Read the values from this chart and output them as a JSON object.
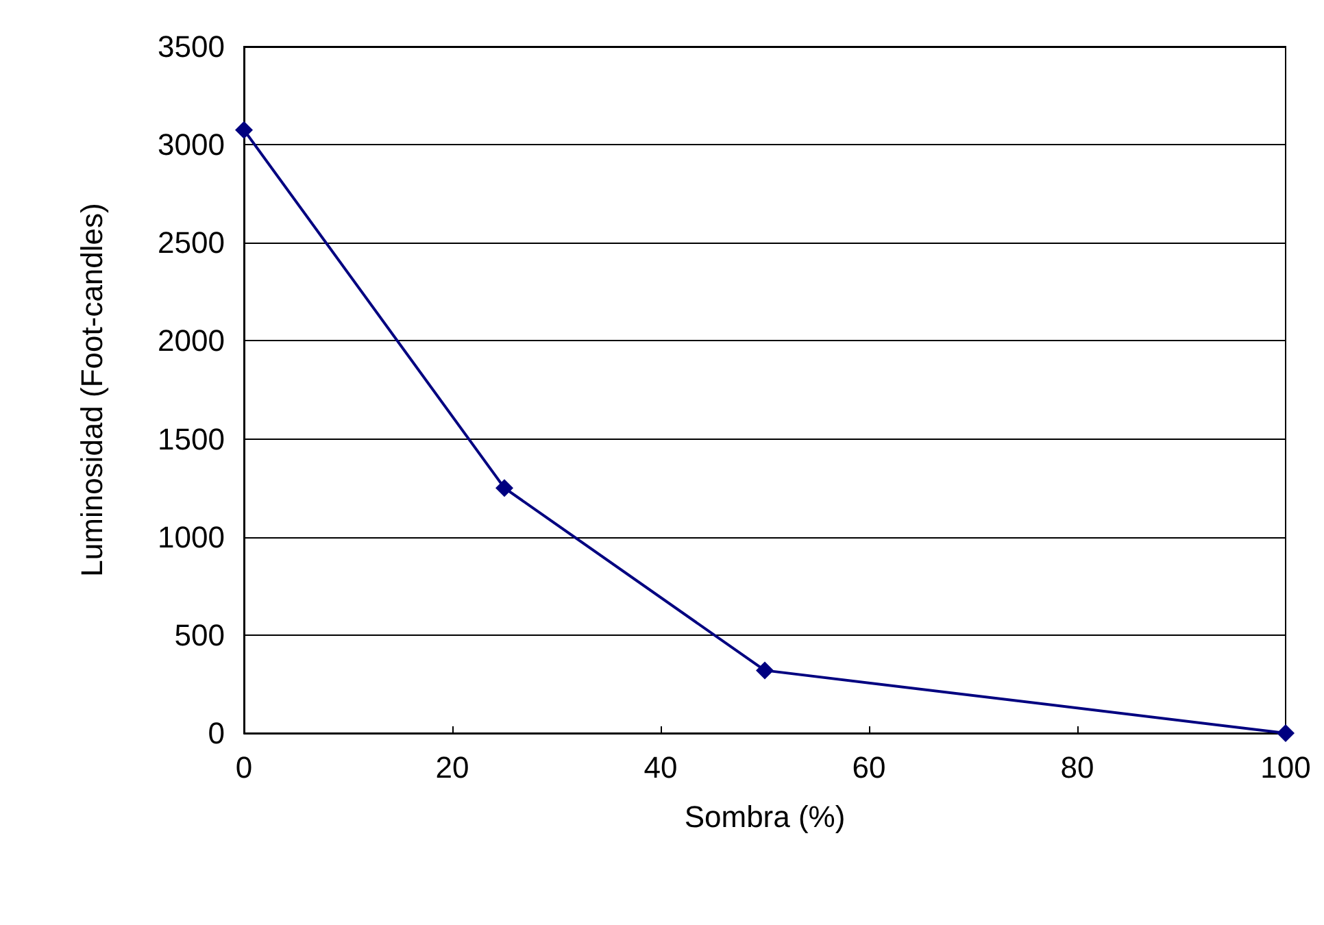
{
  "chart_data": {
    "type": "line",
    "xlabel": "Sombra (%)",
    "ylabel": "Luminosidad (Foot-candles)",
    "x": [
      0,
      25,
      50,
      100
    ],
    "series": [
      {
        "color": "#000080",
        "values": [
          3075,
          1250,
          320,
          0
        ]
      }
    ],
    "xlim": [
      0,
      100
    ],
    "xticks": [
      0,
      20,
      40,
      60,
      80,
      100
    ],
    "ylim": [
      0,
      3500
    ],
    "yticks": [
      0,
      500,
      1000,
      1500,
      2000,
      2500,
      3000,
      3500
    ],
    "grid": "y",
    "marker": "diamond",
    "line_style": "solid"
  }
}
